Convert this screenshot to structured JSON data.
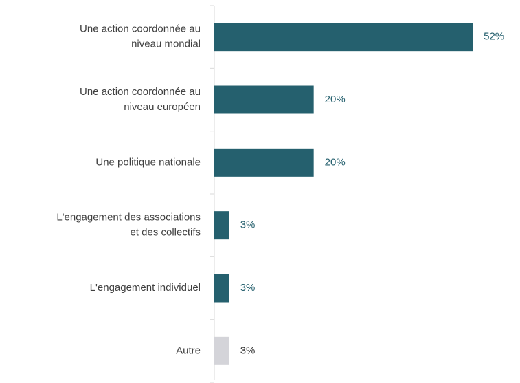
{
  "chart_data": {
    "type": "bar",
    "orientation": "horizontal",
    "categories": [
      [
        "Une action coordonnée au",
        "niveau mondial"
      ],
      [
        "Une action coordonnée au",
        "niveau européen"
      ],
      [
        "Une politique nationale"
      ],
      [
        "L'engagement des associations",
        "et des collectifs"
      ],
      [
        "L'engagement individuel"
      ],
      [
        "Autre"
      ]
    ],
    "values": [
      52,
      20,
      20,
      3,
      3,
      3
    ],
    "value_labels": [
      "52%",
      "20%",
      "20%",
      "3%",
      "3%",
      "3%"
    ],
    "colors": [
      "#25606e",
      "#25606e",
      "#25606e",
      "#25606e",
      "#25606e",
      "#d4d4d9"
    ],
    "label_colors": [
      "#25606e",
      "#25606e",
      "#25606e",
      "#25606e",
      "#25606e",
      "#333333"
    ],
    "xlim": [
      0,
      60
    ]
  }
}
